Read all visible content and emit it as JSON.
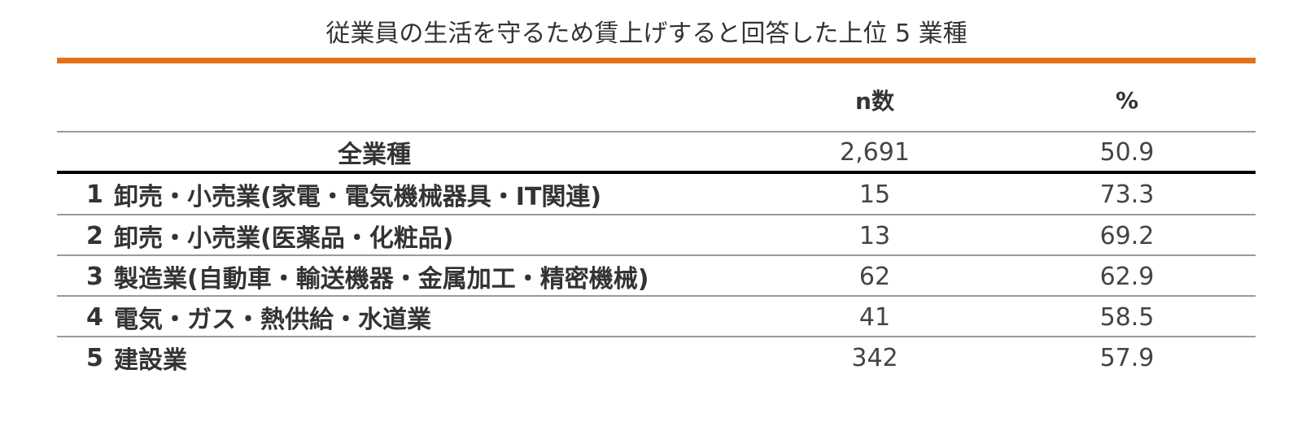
{
  "title": "従業員の生活を守るため賃上げすると回答した上位 5 業種",
  "colors": {
    "accent": "#E8701A",
    "text": "#333333",
    "rule": "#9a9a9a"
  },
  "chart_data": {
    "type": "table",
    "title": "従業員の生活を守るため賃上げすると回答した上位 5 業種",
    "columns": [
      "",
      "n数",
      "%"
    ],
    "total": {
      "label": "全業種",
      "n": "2,691",
      "pct": "50.9"
    },
    "rows": [
      {
        "rank": "1",
        "label": "卸売・小売業(家電・電気機械器具・IT関連)",
        "n": "15",
        "pct": "73.3"
      },
      {
        "rank": "2",
        "label": "卸売・小売業(医薬品・化粧品)",
        "n": "13",
        "pct": "69.2"
      },
      {
        "rank": "3",
        "label": "製造業(自動車・輸送機器・金属加工・精密機械)",
        "n": "62",
        "pct": "62.9"
      },
      {
        "rank": "4",
        "label": "電気・ガス・熱供給・水道業",
        "n": "41",
        "pct": "58.5"
      },
      {
        "rank": "5",
        "label": "建設業",
        "n": "342",
        "pct": "57.9"
      }
    ]
  }
}
